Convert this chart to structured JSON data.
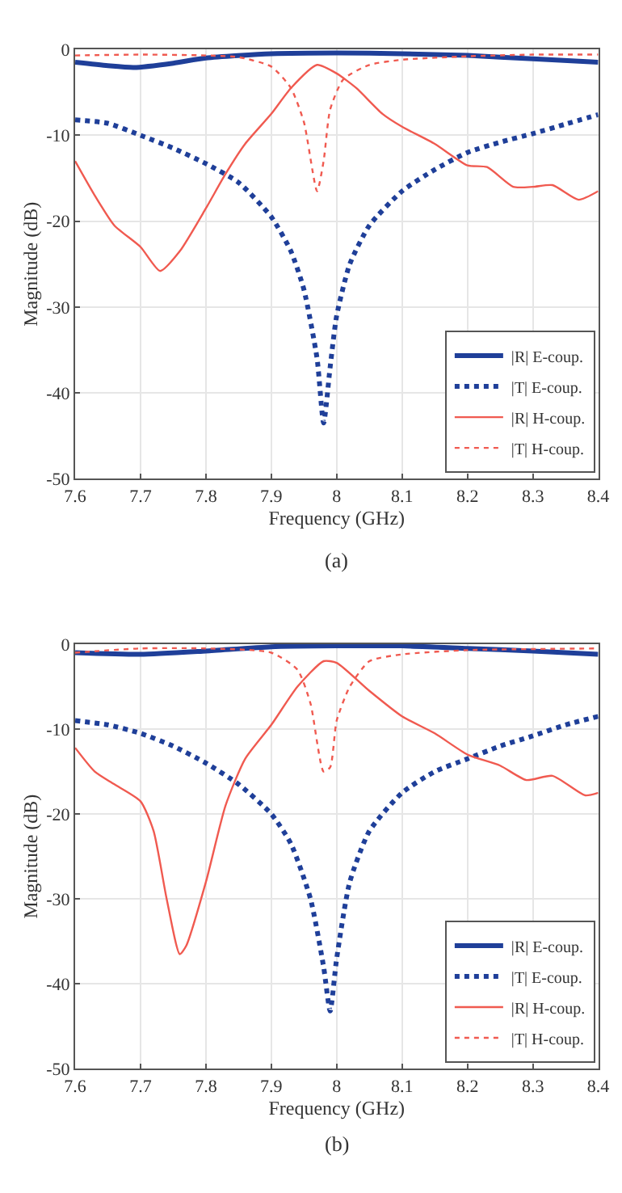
{
  "chart_data": [
    {
      "type": "line",
      "xlabel": "Frequency (GHz)",
      "ylabel": "Magnitude (dB)",
      "annotations": [
        "(a)"
      ],
      "xlim": [
        7.6,
        8.4
      ],
      "ylim": [
        -50,
        0
      ],
      "xticks": [
        7.6,
        7.7,
        7.8,
        7.9,
        8,
        8.1,
        8.2,
        8.3,
        8.4
      ],
      "yticks": [
        -50,
        -40,
        -30,
        -20,
        -10,
        0
      ],
      "grid": true,
      "legend": "bottom right",
      "marker": "none",
      "series": [
        {
          "name": "|R| E-coup.",
          "color": "#1f3f99",
          "line_style": "solid",
          "x": [
            7.6,
            7.65,
            7.69,
            7.75,
            7.8,
            7.9,
            8.0,
            8.1,
            8.2,
            8.3,
            8.4
          ],
          "values": [
            -1.5,
            -1.9,
            -2.1,
            -1.6,
            -1.0,
            -0.5,
            -0.4,
            -0.5,
            -0.7,
            -1.1,
            -1.5
          ]
        },
        {
          "name": "|T| E-coup.",
          "color": "#1f3f99",
          "line_style": "dotted",
          "x": [
            7.6,
            7.65,
            7.7,
            7.75,
            7.8,
            7.85,
            7.9,
            7.93,
            7.95,
            7.97,
            7.98,
            7.99,
            8.0,
            8.02,
            8.05,
            8.1,
            8.15,
            8.2,
            8.25,
            8.3,
            8.35,
            8.4
          ],
          "values": [
            -8.2,
            -8.6,
            -10,
            -11.5,
            -13.3,
            -15.5,
            -19.5,
            -23.5,
            -28,
            -36,
            -43.5,
            -37,
            -31,
            -25,
            -20.5,
            -16.5,
            -14,
            -12,
            -10.8,
            -9.8,
            -8.7,
            -7.6
          ]
        },
        {
          "name": "|R| H-coup.",
          "color": "#f05a50",
          "line_style": "solid",
          "x": [
            7.6,
            7.63,
            7.66,
            7.7,
            7.73,
            7.76,
            7.8,
            7.83,
            7.86,
            7.9,
            7.93,
            7.97,
            8.0,
            8.03,
            8.07,
            8.1,
            8.15,
            8.2,
            8.23,
            8.27,
            8.3,
            8.33,
            8.37,
            8.4
          ],
          "values": [
            -13,
            -17,
            -20.5,
            -23,
            -25.8,
            -23.5,
            -18.5,
            -14.5,
            -11,
            -7.5,
            -4.5,
            -1.8,
            -2.8,
            -4.5,
            -7.5,
            -9,
            -11,
            -13.5,
            -13.7,
            -16,
            -16,
            -15.8,
            -17.5,
            -16.5
          ]
        },
        {
          "name": "|T| H-coup.",
          "color": "#f05a50",
          "line_style": "dotted",
          "x": [
            7.6,
            7.7,
            7.8,
            7.85,
            7.9,
            7.93,
            7.95,
            7.97,
            7.98,
            7.99,
            8.01,
            8.05,
            8.1,
            8.2,
            8.3,
            8.4
          ],
          "values": [
            -0.7,
            -0.6,
            -0.7,
            -0.9,
            -2,
            -4.5,
            -8.5,
            -16.5,
            -13,
            -7,
            -3.5,
            -1.8,
            -1.2,
            -0.8,
            -0.6,
            -0.6
          ]
        }
      ]
    },
    {
      "type": "line",
      "xlabel": "Frequency (GHz)",
      "ylabel": "Magnitude (dB)",
      "annotations": [
        "(b)"
      ],
      "xlim": [
        7.6,
        8.4
      ],
      "ylim": [
        -50,
        0
      ],
      "xticks": [
        7.6,
        7.7,
        7.8,
        7.9,
        8,
        8.1,
        8.2,
        8.3,
        8.4
      ],
      "yticks": [
        -50,
        -40,
        -30,
        -20,
        -10,
        0
      ],
      "grid": true,
      "legend": "bottom right",
      "marker": "none",
      "series": [
        {
          "name": "|R| E-coup.",
          "color": "#1f3f99",
          "line_style": "solid",
          "x": [
            7.6,
            7.7,
            7.8,
            7.9,
            8.0,
            8.1,
            8.2,
            8.3,
            8.4
          ],
          "values": [
            -1.0,
            -1.2,
            -0.8,
            -0.3,
            -0.2,
            -0.2,
            -0.5,
            -0.8,
            -1.2
          ]
        },
        {
          "name": "|T| E-coup.",
          "color": "#1f3f99",
          "line_style": "dotted",
          "x": [
            7.6,
            7.65,
            7.7,
            7.75,
            7.8,
            7.85,
            7.9,
            7.93,
            7.96,
            7.98,
            7.99,
            8.0,
            8.02,
            8.05,
            8.1,
            8.15,
            8.2,
            8.25,
            8.3,
            8.35,
            8.4
          ],
          "values": [
            -9,
            -9.5,
            -10.5,
            -12,
            -14,
            -16.5,
            -20,
            -23.5,
            -30,
            -38,
            -43.2,
            -37,
            -28,
            -22,
            -17.5,
            -15,
            -13.5,
            -12,
            -10.8,
            -9.5,
            -8.5
          ]
        },
        {
          "name": "|R| H-coup.",
          "color": "#f05a50",
          "line_style": "solid",
          "x": [
            7.6,
            7.63,
            7.66,
            7.7,
            7.72,
            7.74,
            7.76,
            7.77,
            7.8,
            7.83,
            7.86,
            7.9,
            7.94,
            7.98,
            8.0,
            8.05,
            8.1,
            8.15,
            8.2,
            8.25,
            8.29,
            8.33,
            8.38,
            8.4
          ],
          "values": [
            -12.2,
            -15,
            -16.5,
            -18.5,
            -22,
            -30,
            -36.5,
            -35.5,
            -28,
            -19,
            -13.5,
            -9.5,
            -5,
            -2,
            -2.2,
            -5.5,
            -8.5,
            -10.5,
            -13,
            -14.3,
            -16,
            -15.5,
            -17.8,
            -17.5
          ]
        },
        {
          "name": "|T| H-coup.",
          "color": "#f05a50",
          "line_style": "dotted",
          "x": [
            7.6,
            7.7,
            7.8,
            7.9,
            7.94,
            7.96,
            7.98,
            7.99,
            8.0,
            8.02,
            8.05,
            8.1,
            8.2,
            8.4
          ],
          "values": [
            -1.0,
            -0.5,
            -0.5,
            -1.0,
            -3,
            -7,
            -15,
            -14.5,
            -9,
            -5,
            -2,
            -1.2,
            -0.7,
            -0.5
          ]
        }
      ]
    }
  ]
}
